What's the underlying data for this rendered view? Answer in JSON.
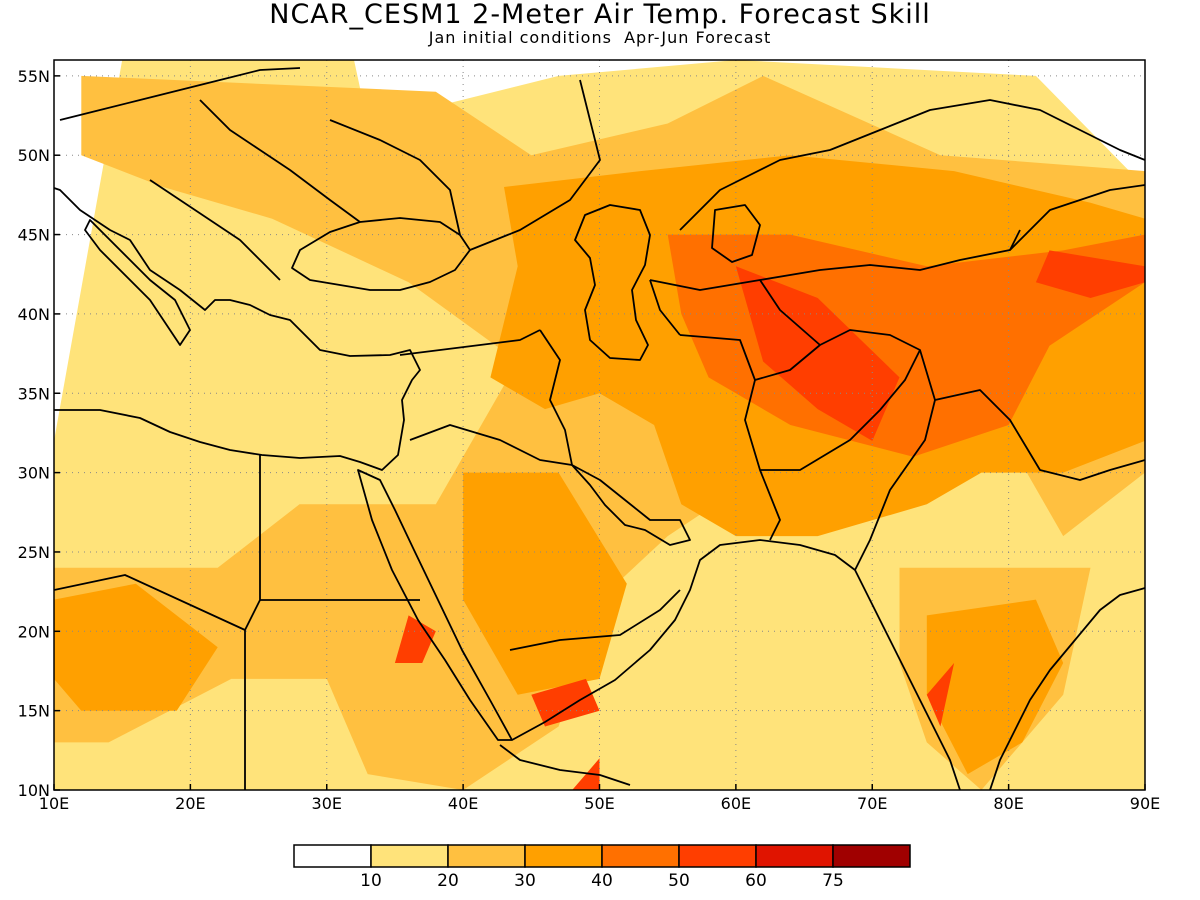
{
  "title": "NCAR_CESM1 2-Meter Air Temp. Forecast Skill",
  "subtitle": "Jan initial conditions  Apr-Jun Forecast",
  "map": {
    "lon_range": [
      10,
      90
    ],
    "lat_range": [
      10,
      56
    ],
    "lon_ticks": [
      {
        "value": 10,
        "label": "10E"
      },
      {
        "value": 20,
        "label": "20E"
      },
      {
        "value": 30,
        "label": "30E"
      },
      {
        "value": 40,
        "label": "40E"
      },
      {
        "value": 50,
        "label": "50E"
      },
      {
        "value": 60,
        "label": "60E"
      },
      {
        "value": 70,
        "label": "70E"
      },
      {
        "value": 80,
        "label": "80E"
      },
      {
        "value": 90,
        "label": "90E"
      }
    ],
    "lat_ticks": [
      {
        "value": 55,
        "label": "55N"
      },
      {
        "value": 50,
        "label": "50N"
      },
      {
        "value": 45,
        "label": "45N"
      },
      {
        "value": 40,
        "label": "40N"
      },
      {
        "value": 35,
        "label": "35N"
      },
      {
        "value": 30,
        "label": "30N"
      },
      {
        "value": 25,
        "label": "25N"
      },
      {
        "value": 20,
        "label": "20N"
      },
      {
        "value": 15,
        "label": "15N"
      },
      {
        "value": 10,
        "label": "10N"
      }
    ],
    "grid": "dotted",
    "skill_regions": [
      {
        "level": 10,
        "lons": [
          [
            10,
            32
          ],
          [
            15,
            56
          ],
          [
            32,
            56
          ],
          [
            33,
            52
          ],
          [
            47,
            55
          ],
          [
            60,
            56
          ],
          [
            82,
            55
          ],
          [
            90,
            48
          ],
          [
            90,
            10
          ],
          [
            10,
            10
          ]
        ]
      },
      {
        "level": 20,
        "lons": [
          [
            12,
            55
          ],
          [
            38,
            54
          ],
          [
            45,
            50
          ],
          [
            55,
            52
          ],
          [
            62,
            55
          ],
          [
            75,
            50
          ],
          [
            90,
            49
          ],
          [
            90,
            30
          ],
          [
            84,
            26
          ],
          [
            80,
            32
          ],
          [
            74,
            32
          ],
          [
            62,
            30
          ],
          [
            55,
            26
          ],
          [
            50,
            22
          ],
          [
            47,
            14
          ],
          [
            40,
            10
          ],
          [
            33,
            11
          ],
          [
            30,
            17
          ],
          [
            23,
            17
          ],
          [
            14,
            13
          ],
          [
            10,
            13
          ],
          [
            10,
            24
          ],
          [
            22,
            24
          ],
          [
            28,
            28
          ],
          [
            38,
            28
          ],
          [
            44,
            37
          ],
          [
            36,
            42
          ],
          [
            26,
            46
          ],
          [
            18,
            48
          ],
          [
            12,
            50
          ]
        ]
      },
      {
        "level": 20,
        "lons": [
          [
            72,
            24
          ],
          [
            86,
            24
          ],
          [
            84,
            16
          ],
          [
            80,
            12
          ],
          [
            78,
            10
          ],
          [
            74,
            13
          ],
          [
            72,
            18
          ]
        ]
      },
      {
        "level": 30,
        "lons": [
          [
            43,
            48
          ],
          [
            53,
            49
          ],
          [
            64,
            50
          ],
          [
            76,
            49
          ],
          [
            86,
            47
          ],
          [
            90,
            46
          ],
          [
            90,
            32
          ],
          [
            84,
            30
          ],
          [
            78,
            30
          ],
          [
            74,
            28
          ],
          [
            66,
            26
          ],
          [
            60,
            26
          ],
          [
            56,
            28
          ],
          [
            54,
            33
          ],
          [
            50,
            35
          ],
          [
            46,
            34
          ],
          [
            42,
            36
          ],
          [
            44,
            43
          ]
        ]
      },
      {
        "level": 30,
        "lons": [
          [
            40,
            30
          ],
          [
            47,
            30
          ],
          [
            52,
            23
          ],
          [
            50,
            17
          ],
          [
            44,
            16
          ],
          [
            40,
            22
          ]
        ]
      },
      {
        "level": 30,
        "lons": [
          [
            10,
            22
          ],
          [
            16,
            23
          ],
          [
            22,
            19
          ],
          [
            19,
            15
          ],
          [
            12,
            15
          ],
          [
            10,
            17
          ]
        ]
      },
      {
        "level": 30,
        "lons": [
          [
            74,
            21
          ],
          [
            82,
            22
          ],
          [
            84,
            18
          ],
          [
            81,
            13
          ],
          [
            77,
            11
          ],
          [
            74,
            16
          ]
        ]
      },
      {
        "level": 40,
        "lons": [
          [
            55,
            45
          ],
          [
            64,
            45
          ],
          [
            74,
            43
          ],
          [
            84,
            44
          ],
          [
            90,
            45
          ],
          [
            90,
            42
          ],
          [
            83,
            38
          ],
          [
            80,
            33
          ],
          [
            73,
            31
          ],
          [
            64,
            33
          ],
          [
            58,
            36
          ],
          [
            56,
            40
          ]
        ]
      },
      {
        "level": 50,
        "lons": [
          [
            60,
            43
          ],
          [
            66,
            41
          ],
          [
            72,
            36
          ],
          [
            70,
            32
          ],
          [
            66,
            34
          ],
          [
            62,
            37
          ]
        ]
      },
      {
        "level": 50,
        "lons": [
          [
            83,
            44
          ],
          [
            90,
            43
          ],
          [
            90,
            42
          ],
          [
            86,
            41
          ],
          [
            82,
            42
          ]
        ]
      },
      {
        "level": 50,
        "lons": [
          [
            74,
            16
          ],
          [
            76,
            18
          ],
          [
            75,
            14
          ]
        ]
      },
      {
        "level": 50,
        "lons": [
          [
            36,
            21
          ],
          [
            38,
            20
          ],
          [
            37,
            18
          ],
          [
            35,
            18
          ]
        ]
      },
      {
        "level": 50,
        "lons": [
          [
            45,
            16
          ],
          [
            49,
            17
          ],
          [
            50,
            15
          ],
          [
            46,
            14
          ]
        ]
      },
      {
        "level": 50,
        "lons": [
          [
            49,
            11
          ],
          [
            50,
            12
          ],
          [
            50,
            10
          ],
          [
            48,
            10
          ]
        ]
      }
    ]
  },
  "colorbar": {
    "labels": [
      "10",
      "20",
      "30",
      "40",
      "50",
      "60",
      "75"
    ],
    "colors": [
      "#ffffff",
      "#ffe37a",
      "#ffc040",
      "#ffa000",
      "#ff7000",
      "#ff3e00",
      "#e01400",
      "#a00000"
    ]
  }
}
